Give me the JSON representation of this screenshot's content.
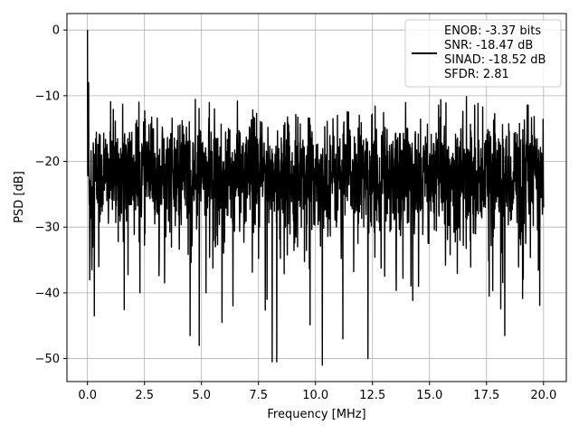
{
  "chart_data": {
    "type": "line",
    "title": "",
    "xlabel": "Frequency [MHz]",
    "ylabel": "PSD [dB]",
    "xlim": [
      -0.9,
      21.0
    ],
    "ylim": [
      -53.5,
      2.5
    ],
    "xticks": [
      0.0,
      2.5,
      5.0,
      7.5,
      10.0,
      12.5,
      15.0,
      17.5,
      20.0
    ],
    "xtick_labels": [
      "0.0",
      "2.5",
      "5.0",
      "7.5",
      "10.0",
      "12.5",
      "15.0",
      "17.5",
      "20.0"
    ],
    "yticks": [
      0,
      -10,
      -20,
      -30,
      -40,
      -50
    ],
    "ytick_labels": [
      "0",
      "−10",
      "−20",
      "−30",
      "−40",
      "−50"
    ],
    "grid": true,
    "legend_position": "upper right",
    "line_color": "#000000",
    "series": [
      {
        "name": "ENOB: -3.37 bits\nSNR: -18.47 dB\nSINAD: -18.52 dB\nSFDR: 2.81",
        "x_range": [
          0.0,
          20.0
        ],
        "num_points": 2048,
        "peak": {
          "x": 0.0,
          "y": 0.0
        },
        "notable_points": [
          {
            "x": 0.05,
            "y": -8
          },
          {
            "x": 0.1,
            "y": -38
          },
          {
            "x": 0.3,
            "y": -43.5
          },
          {
            "x": 2.3,
            "y": -40
          },
          {
            "x": 4.5,
            "y": -46.5
          },
          {
            "x": 4.9,
            "y": -48
          },
          {
            "x": 5.9,
            "y": -44.5
          },
          {
            "x": 8.1,
            "y": -50.5
          },
          {
            "x": 8.3,
            "y": -50.5
          },
          {
            "x": 10.3,
            "y": -51
          },
          {
            "x": 11.2,
            "y": -47
          },
          {
            "x": 12.3,
            "y": -50
          },
          {
            "x": 18.3,
            "y": -46.5
          },
          {
            "x": 20.0,
            "y": -27
          }
        ],
        "noise_floor_median": -22,
        "noise_upper_envelope": -10,
        "noise_lower_typical": -35
      }
    ],
    "legend_lines": [
      "ENOB: -3.37 bits",
      "SNR: -18.47 dB",
      "SINAD: -18.52 dB",
      "SFDR: 2.81"
    ]
  }
}
